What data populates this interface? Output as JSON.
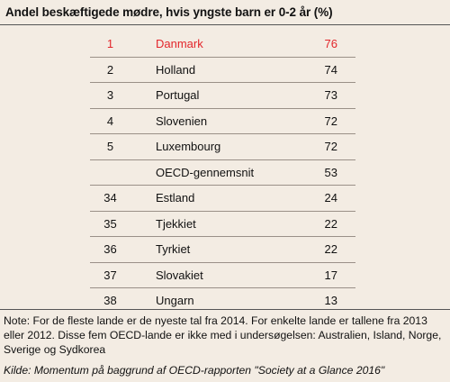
{
  "title": "Andel beskæftigede mødre, hvis yngste barn er 0-2 år (%)",
  "note": "Note: For de fleste lande er de nyeste tal fra 2014. For enkelte lande er tallene fra 2013 eller 2012. Disse fem OECD-lande er ikke med i undersøgelsen: Australien, Island, Norge, Sverige og Sydkorea",
  "source": "Kilde: Momentum på baggrund af OECD-rapporten \"Society at a Glance 2016\"",
  "colors": {
    "background": "#f3ece3",
    "highlight": "#e3262b",
    "text": "#111111"
  },
  "chart_data": {
    "type": "table",
    "title": "Andel beskæftigede mødre, hvis yngste barn er 0-2 år (%)",
    "columns": [
      "rank",
      "country",
      "value"
    ],
    "rows": [
      {
        "rank": "1",
        "country": "Danmark",
        "value": "76",
        "highlight": true
      },
      {
        "rank": "2",
        "country": "Holland",
        "value": "74"
      },
      {
        "rank": "3",
        "country": "Portugal",
        "value": "73"
      },
      {
        "rank": "4",
        "country": "Slovenien",
        "value": "72"
      },
      {
        "rank": "5",
        "country": "Luxembourg",
        "value": "72"
      },
      {
        "rank": "",
        "country": "OECD-gennemsnit",
        "value": "53"
      },
      {
        "rank": "34",
        "country": "Estland",
        "value": "24"
      },
      {
        "rank": "35",
        "country": "Tjekkiet",
        "value": "22"
      },
      {
        "rank": "36",
        "country": "Tyrkiet",
        "value": "22"
      },
      {
        "rank": "37",
        "country": "Slovakiet",
        "value": "17"
      },
      {
        "rank": "38",
        "country": "Ungarn",
        "value": "13"
      }
    ]
  }
}
